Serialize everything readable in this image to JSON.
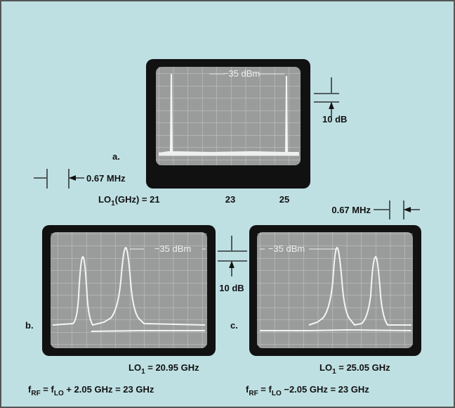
{
  "panel_a": {
    "label": "a.",
    "marker": "−35 dBm",
    "scale": "10 dB",
    "lo": {
      "name": "LO",
      "sub": "1",
      "text": "(GHz) = 21"
    },
    "ticks": [
      "23",
      "25"
    ]
  },
  "spacing_left": "0.67 MHz",
  "panel_b": {
    "label": "b.",
    "marker": "−35 dBm",
    "lo": {
      "name": "LO",
      "sub": "1",
      "text": " = 20.95 GHz"
    },
    "formula": {
      "f": "f",
      "rf": "RF",
      "mid": " = f",
      "lo": "LO",
      "rest": " + 2.05 GHz = 23 GHz"
    }
  },
  "scale_middle": "10 dB",
  "panel_c": {
    "label": "c.",
    "marker": "−35 dBm",
    "lo": {
      "name": "LO",
      "sub": "1",
      "text": " = 25.05 GHz"
    },
    "formula": {
      "f": "f",
      "rf": "RF",
      "mid": " = f",
      "lo": "LO",
      "rest": " −2.05 GHz = 23 GHz"
    }
  },
  "spacing_right": "0.67 MHz"
}
